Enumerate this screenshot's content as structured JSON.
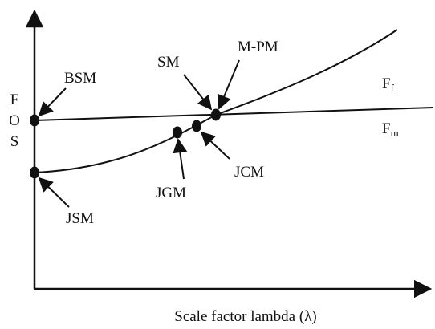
{
  "diagram": {
    "y_axis_label": [
      "F",
      "O",
      "S"
    ],
    "x_axis_label": "Scale factor lambda (λ)",
    "curves": [
      {
        "id": "ff",
        "name_main": "F",
        "name_sub": "f"
      },
      {
        "id": "fm",
        "name_main": "F",
        "name_sub": "m"
      }
    ],
    "points": [
      {
        "id": "bsm",
        "label": "BSM"
      },
      {
        "id": "jsm",
        "label": "JSM"
      },
      {
        "id": "sm",
        "label": "SM"
      },
      {
        "id": "m-pm",
        "label": "M-PM"
      },
      {
        "id": "jgm",
        "label": "JGM"
      },
      {
        "id": "jcm",
        "label": "JCM"
      }
    ],
    "colors": {
      "ink": "#111111",
      "background": "#ffffff"
    }
  }
}
